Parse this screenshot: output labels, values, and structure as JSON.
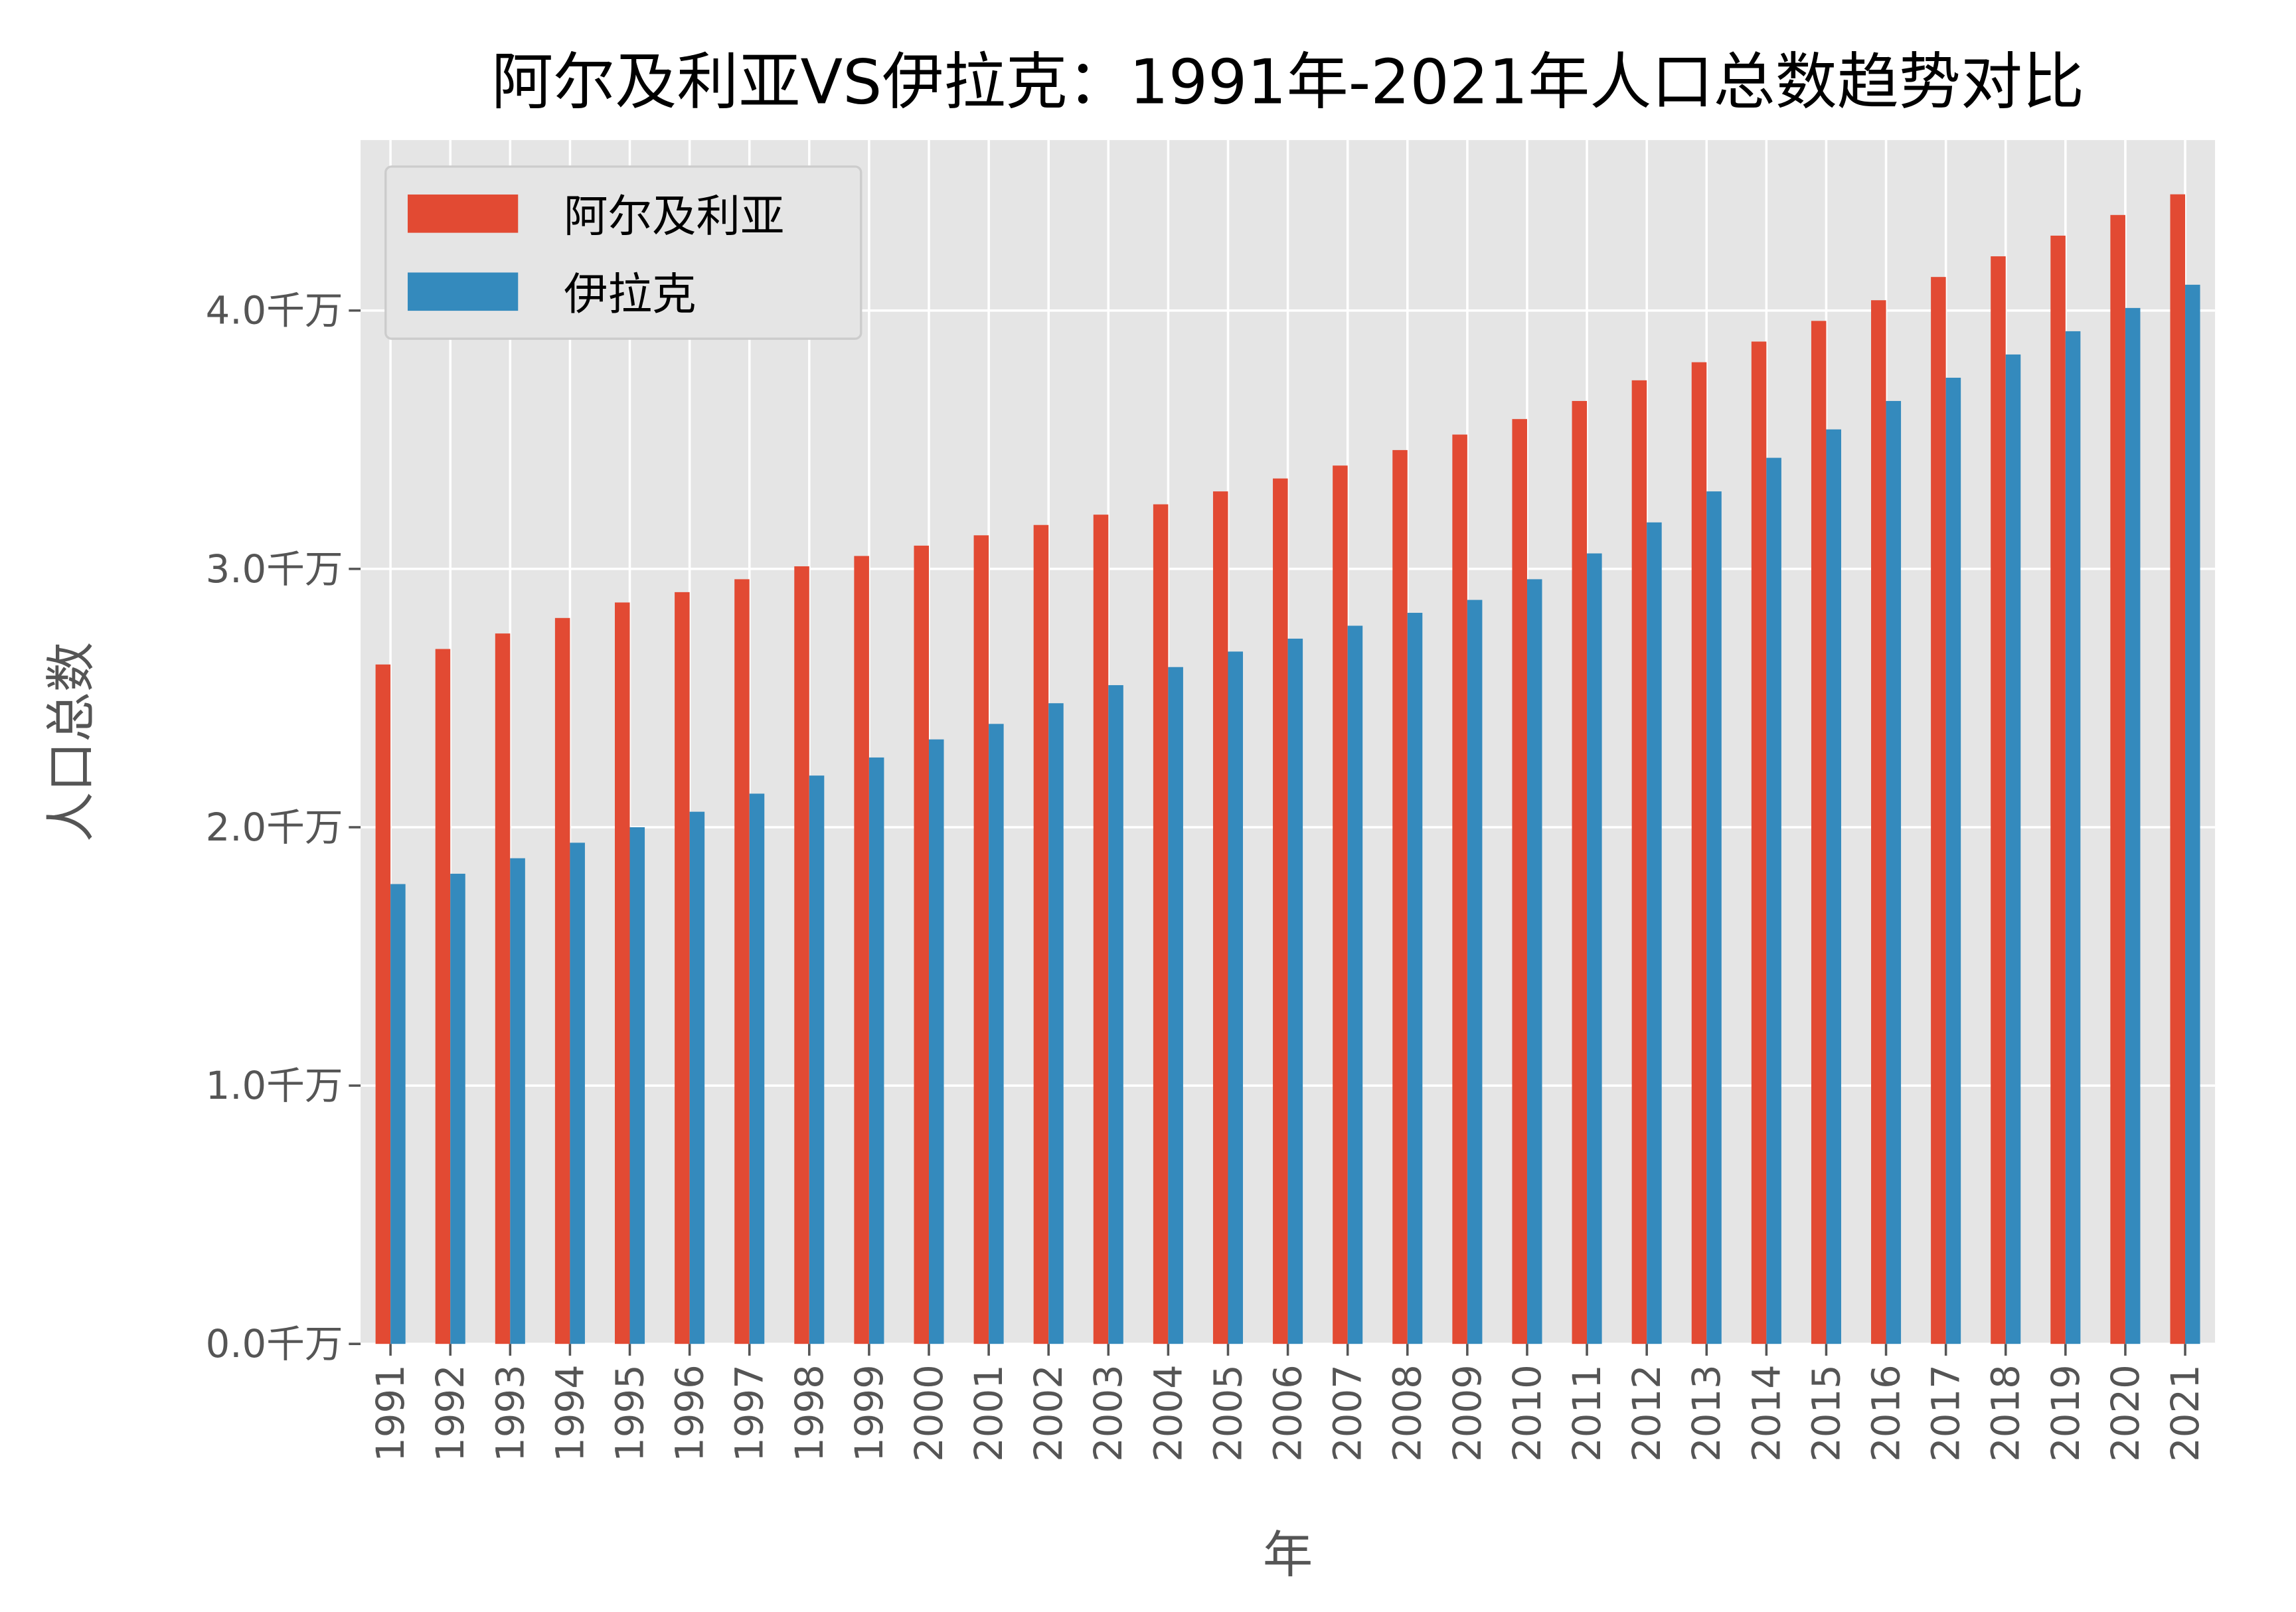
{
  "chart_data": {
    "type": "bar",
    "title": "阿尔及利亚VS伊拉克：1991年-2021年人口总数趋势对比",
    "xlabel": "年",
    "ylabel": "人口总数",
    "ylim": [
      0,
      4.66
    ],
    "yticks": [
      0,
      1,
      2,
      3,
      4
    ],
    "ytick_labels": [
      "0.0千万",
      "1.0千万",
      "2.0千万",
      "3.0千万",
      "4.0千万"
    ],
    "grid": true,
    "legend_position": "top-left",
    "categories": [
      "1991",
      "1992",
      "1993",
      "1994",
      "1995",
      "1996",
      "1997",
      "1998",
      "1999",
      "2000",
      "2001",
      "2002",
      "2003",
      "2004",
      "2005",
      "2006",
      "2007",
      "2008",
      "2009",
      "2010",
      "2011",
      "2012",
      "2013",
      "2014",
      "2015",
      "2016",
      "2017",
      "2018",
      "2019",
      "2020",
      "2021"
    ],
    "series": [
      {
        "name": "阿尔及利亚",
        "color": "#E24A33",
        "values": [
          2.63,
          2.69,
          2.75,
          2.81,
          2.87,
          2.91,
          2.96,
          3.01,
          3.05,
          3.09,
          3.13,
          3.17,
          3.21,
          3.25,
          3.3,
          3.35,
          3.4,
          3.46,
          3.52,
          3.58,
          3.65,
          3.73,
          3.8,
          3.88,
          3.96,
          4.04,
          4.13,
          4.21,
          4.29,
          4.37,
          4.45
        ]
      },
      {
        "name": "伊拉克",
        "color": "#348ABD",
        "values": [
          1.78,
          1.82,
          1.88,
          1.94,
          2.0,
          2.06,
          2.13,
          2.2,
          2.27,
          2.34,
          2.4,
          2.48,
          2.55,
          2.62,
          2.68,
          2.73,
          2.78,
          2.83,
          2.88,
          2.96,
          3.06,
          3.18,
          3.3,
          3.43,
          3.54,
          3.65,
          3.74,
          3.83,
          3.92,
          4.01,
          4.1
        ]
      }
    ]
  }
}
